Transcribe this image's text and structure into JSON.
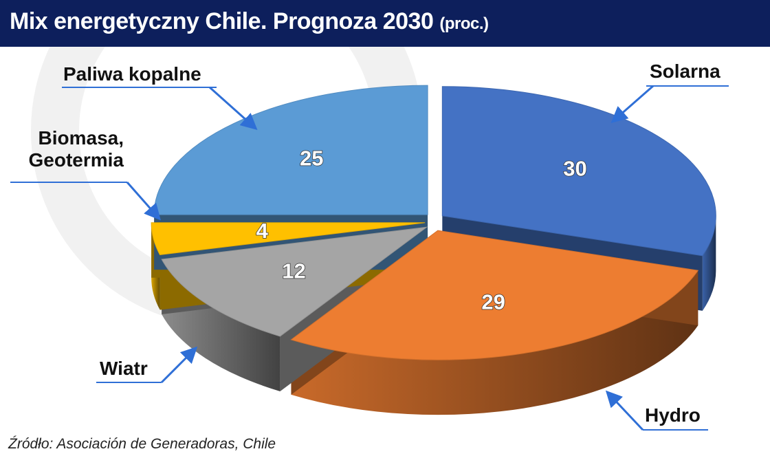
{
  "chart_data": {
    "type": "pie3d",
    "title": "Mix energetyczny Chile. Prognoza 2030",
    "subtitle": "(proc.)",
    "categories": [
      "Solarna",
      "Hydro",
      "Wiatr",
      "Biomasa, Geotermia",
      "Paliwa kopalne"
    ],
    "values": [
      30,
      29,
      12,
      4,
      25
    ],
    "colors": [
      "#4472c4",
      "#ed7d31",
      "#a5a5a5",
      "#ffc000",
      "#5b9bd5"
    ],
    "source": "Źródło: Asociación de Generadoras, Chile"
  }
}
